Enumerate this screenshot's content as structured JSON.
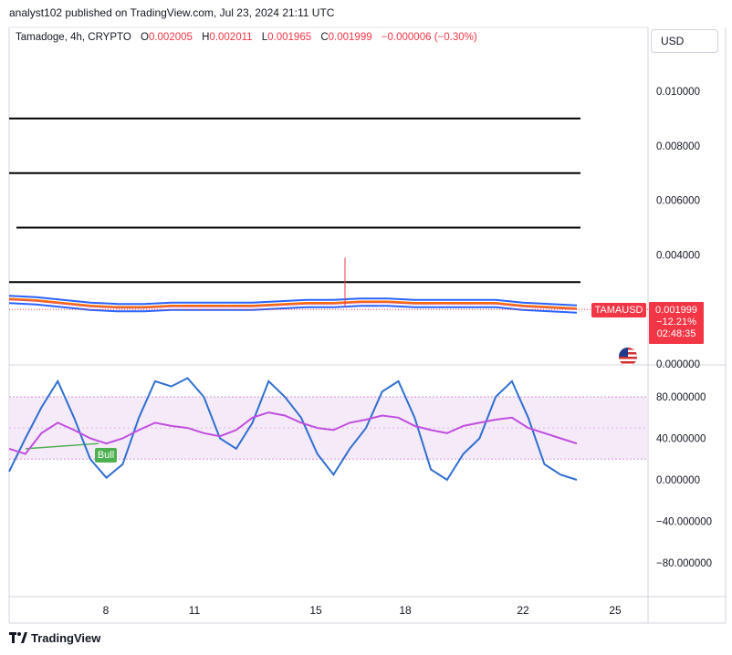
{
  "header": {
    "publisher": "analyst102 published on TradingView.com, Jul 23, 2024 21:11 UTC"
  },
  "legend": {
    "symbol": "Tamadoge, 4h, CRYPTO",
    "o_label": "O",
    "o_value": "0.002005",
    "h_label": "H",
    "h_value": "0.002011",
    "l_label": "L",
    "l_value": "0.001965",
    "c_label": "C",
    "c_value": "0.001999",
    "change": "−0.000006 (−0.30%)"
  },
  "currency_button": "USD",
  "price_tag": {
    "symbol": "TAMAUSD",
    "price": "0.001999",
    "change_pct": "−12.21%",
    "countdown": "02:48:35"
  },
  "bull_label": "Bull",
  "footer": {
    "brand": "TradingView"
  },
  "colors": {
    "price_red": "#f23645",
    "band_blue": "#2962ff",
    "ma_orange": "#ff6d00",
    "stoch_blue": "#2f6fd0",
    "rsi_purple": "#c04ee0",
    "bull_green": "#4caf50"
  },
  "chart_data": [
    {
      "type": "line",
      "title": "Tamadoge, 4h, CRYPTO",
      "y_ticks": [
        "0.010000",
        "0.008000",
        "0.006000",
        "0.004000",
        "0.000000"
      ],
      "y_tick_values": [
        0.01,
        0.008,
        0.006,
        0.004,
        0.0
      ],
      "x_ticks": [
        "8",
        "11",
        "15",
        "18",
        "22",
        "25"
      ],
      "ylim": [
        0.0,
        0.01
      ],
      "horizontal_levels": [
        0.009,
        0.007,
        0.005,
        0.003
      ],
      "series": [
        {
          "values": [
            0.00235,
            0.0023,
            0.0022,
            0.0021,
            0.00205,
            0.00205,
            0.0021,
            0.0021,
            0.0021,
            0.0021,
            0.00215,
            0.0022,
            0.0022,
            0.00225,
            0.00225,
            0.0022,
            0.0022,
            0.0022,
            0.0022,
            0.0021,
            0.00205,
            0.002
          ]
        }
      ],
      "spike_high": 0.0039,
      "last_price": 0.001999
    },
    {
      "type": "line",
      "title": "",
      "y_ticks": [
        "80.000000",
        "40.000000",
        "0.000000",
        "−40.000000",
        "−80.000000"
      ],
      "y_tick_values": [
        80,
        40,
        0,
        -40,
        -80
      ],
      "ylim": [
        -80,
        80
      ],
      "band": [
        20,
        80
      ],
      "series": [
        {
          "values": [
            8,
            40,
            70,
            95,
            60,
            20,
            2,
            15,
            60,
            95,
            90,
            98,
            80,
            40,
            30,
            55,
            95,
            80,
            60,
            25,
            5,
            30,
            50,
            85,
            95,
            60,
            10,
            0,
            25,
            40,
            80,
            95,
            60,
            15,
            5,
            0
          ]
        },
        {
          "values": [
            30,
            25,
            45,
            55,
            48,
            40,
            35,
            40,
            48,
            55,
            52,
            50,
            45,
            42,
            48,
            60,
            65,
            62,
            55,
            50,
            48,
            55,
            58,
            62,
            60,
            52,
            48,
            45,
            52,
            55,
            58,
            60,
            50,
            45,
            40,
            35
          ]
        }
      ]
    }
  ]
}
